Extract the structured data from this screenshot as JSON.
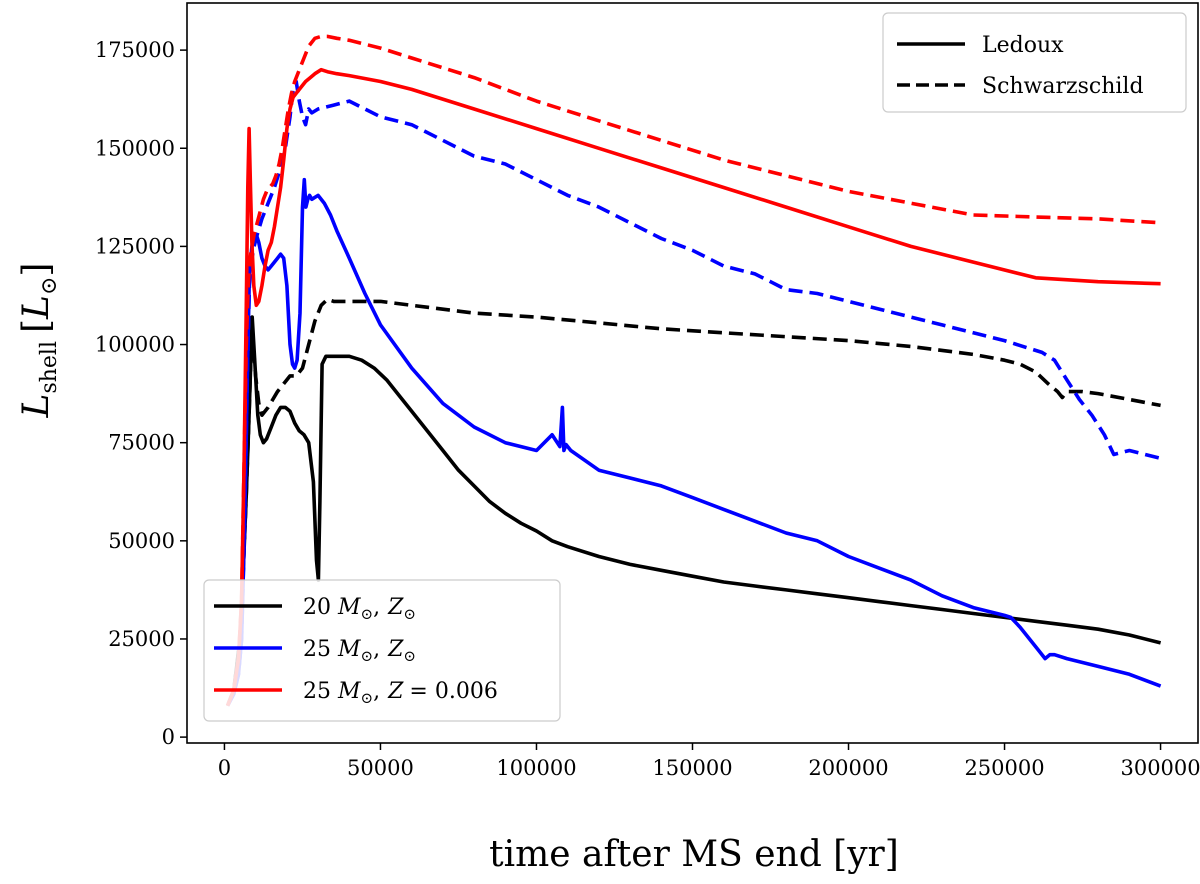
{
  "chart_data": {
    "type": "line",
    "title": "",
    "xlabel": "time after MS end [yr]",
    "ylabel_main": "L",
    "ylabel_sub": "shell",
    "ylabel_unit_open": "[",
    "ylabel_unit_main": "L",
    "ylabel_unit_sub": "⊙",
    "ylabel_unit_close": "]",
    "xlim": [
      -12000,
      312000
    ],
    "ylim": [
      -1500,
      187000
    ],
    "xticks": [
      0,
      50000,
      100000,
      150000,
      200000,
      250000,
      300000
    ],
    "xtick_labels": [
      "0",
      "50000",
      "100000",
      "150000",
      "200000",
      "250000",
      "300000"
    ],
    "yticks": [
      0,
      25000,
      50000,
      75000,
      100000,
      125000,
      150000,
      175000
    ],
    "ytick_labels": [
      "0",
      "25000",
      "50000",
      "75000",
      "100000",
      "125000",
      "150000",
      "175000"
    ],
    "grid": false,
    "style_legend": {
      "placement": "top-right",
      "entries": [
        {
          "label": "Ledoux",
          "dash": "solid",
          "color": "#000000"
        },
        {
          "label": "Schwarzschild",
          "dash": "dashed",
          "color": "#000000"
        }
      ]
    },
    "model_legend": {
      "placement": "bottom-left",
      "entries": [
        {
          "mass": "20",
          "sym": "M",
          "sub": "⊙",
          "sep": ",",
          "zsym": "Z",
          "zsub": "⊙",
          "zval": "",
          "color": "#000000"
        },
        {
          "mass": "25",
          "sym": "M",
          "sub": "⊙",
          "sep": ",",
          "zsym": "Z",
          "zsub": "⊙",
          "zval": "",
          "color": "#0000ff"
        },
        {
          "mass": "25",
          "sym": "M",
          "sub": "⊙",
          "sep": ",",
          "zsym": "Z",
          "zsub": "",
          "zval": "= 0.006",
          "color": "#ff0000"
        }
      ]
    },
    "series": [
      {
        "name": "20 M⊙, Z⊙ Ledoux",
        "color": "#000000",
        "dash": "solid",
        "x": [
          1000,
          3000,
          5000,
          6000,
          7000,
          7800,
          8400,
          8900,
          9400,
          10000,
          10700,
          11500,
          12500,
          13500,
          15000,
          16500,
          18000,
          19500,
          21000,
          22500,
          24000,
          25500,
          27000,
          28500,
          29500,
          30100,
          30600,
          31300,
          32500,
          34000,
          36000,
          40000,
          44000,
          48000,
          52000,
          56000,
          60000,
          65000,
          70000,
          75000,
          80000,
          85000,
          90000,
          95000,
          100000,
          105000,
          110000,
          120000,
          130000,
          140000,
          150000,
          160000,
          170000,
          180000,
          190000,
          200000,
          210000,
          220000,
          230000,
          240000,
          250000,
          260000,
          270000,
          280000,
          290000,
          300000
        ],
        "y": [
          8000,
          12000,
          25000,
          42000,
          62000,
          80000,
          95000,
          107000,
          100000,
          92000,
          82000,
          77000,
          75000,
          76000,
          79000,
          82000,
          84000,
          84000,
          83000,
          80000,
          78000,
          77000,
          75000,
          65000,
          45000,
          40000,
          60000,
          95000,
          97000,
          97000,
          97000,
          97000,
          96000,
          94000,
          91000,
          87000,
          83000,
          78000,
          73000,
          68000,
          64000,
          60000,
          57000,
          54500,
          52500,
          50000,
          48500,
          46000,
          44000,
          42500,
          41000,
          39500,
          38500,
          37500,
          36500,
          35500,
          34500,
          33500,
          32500,
          31500,
          30500,
          29500,
          28500,
          27500,
          26000,
          24000
        ]
      },
      {
        "name": "20 M⊙, Z⊙ Schwarzschild",
        "color": "#000000",
        "dash": "dashed",
        "x": [
          1000,
          3000,
          5000,
          6000,
          7000,
          7800,
          8400,
          8900,
          9400,
          10000,
          11000,
          12000,
          13000,
          14000,
          15500,
          17000,
          19000,
          21000,
          23000,
          25000,
          27000,
          29000,
          31000,
          33000,
          35000,
          40000,
          50000,
          60000,
          80000,
          100000,
          120000,
          140000,
          160000,
          180000,
          200000,
          220000,
          240000,
          250000,
          255000,
          260000,
          264000,
          267000,
          268500,
          270000,
          275000,
          280000,
          290000,
          300000
        ],
        "y": [
          8000,
          12000,
          25000,
          42000,
          62000,
          80000,
          95000,
          104000,
          98000,
          92000,
          85000,
          82000,
          83000,
          84000,
          86000,
          88000,
          90000,
          92000,
          92000,
          94000,
          100000,
          106000,
          110000,
          111500,
          111000,
          111000,
          111000,
          110000,
          108000,
          107000,
          105500,
          104000,
          103000,
          102000,
          101000,
          99500,
          97500,
          96000,
          95000,
          93000,
          90000,
          88000,
          86500,
          88000,
          88000,
          87500,
          86000,
          84500
        ]
      },
      {
        "name": "25 M⊙, Z⊙ Ledoux",
        "color": "#0000ff",
        "dash": "solid",
        "x": [
          1000,
          3000,
          4500,
          5500,
          6500,
          7300,
          8000,
          8800,
          9500,
          10200,
          11000,
          12000,
          13000,
          14000,
          15000,
          16000,
          17000,
          18000,
          19000,
          20000,
          21000,
          21800,
          22500,
          23300,
          24200,
          25000,
          25600,
          26100,
          26700,
          27300,
          28000,
          30000,
          32000,
          34000,
          36000,
          40000,
          45000,
          50000,
          60000,
          70000,
          80000,
          90000,
          100000,
          105000,
          107500,
          108300,
          108800,
          109500,
          111000,
          120000,
          130000,
          140000,
          150000,
          160000,
          170000,
          180000,
          190000,
          200000,
          210000,
          220000,
          230000,
          240000,
          250000,
          252000,
          255000,
          258000,
          261000,
          263000,
          264500,
          266000,
          270000,
          280000,
          290000,
          300000
        ],
        "y": [
          8000,
          11000,
          16000,
          25000,
          55000,
          90000,
          118000,
          125000,
          127000,
          128000,
          126000,
          122000,
          120000,
          119000,
          120000,
          121000,
          122000,
          123000,
          122000,
          115000,
          100000,
          95000,
          94000,
          96000,
          108000,
          135000,
          142000,
          135000,
          137000,
          138000,
          137000,
          138000,
          136000,
          133000,
          129000,
          122000,
          113000,
          105000,
          94000,
          85000,
          79000,
          75000,
          73000,
          77000,
          74000,
          84000,
          73000,
          74500,
          73000,
          68000,
          66000,
          64000,
          61000,
          58000,
          55000,
          52000,
          50000,
          46000,
          43000,
          40000,
          36000,
          33000,
          31000,
          30500,
          28000,
          25000,
          22000,
          20000,
          21000,
          21000,
          20000,
          18000,
          16000,
          13000
        ]
      },
      {
        "name": "25 M⊙, Z⊙ Schwarzschild",
        "color": "#0000ff",
        "dash": "dashed",
        "x": [
          1000,
          3000,
          4500,
          5500,
          6500,
          7300,
          8000,
          8800,
          9500,
          10500,
          12000,
          14000,
          16000,
          18000,
          19500,
          21000,
          22000,
          23000,
          24000,
          25000,
          26000,
          27000,
          28000,
          30000,
          35000,
          40000,
          45000,
          50000,
          60000,
          70000,
          80000,
          90000,
          100000,
          110000,
          120000,
          130000,
          140000,
          150000,
          160000,
          170000,
          175000,
          180000,
          190000,
          200000,
          210000,
          220000,
          230000,
          240000,
          250000,
          258000,
          262000,
          266000,
          270000,
          274000,
          278000,
          282000,
          285000,
          290000,
          300000
        ],
        "y": [
          8000,
          11000,
          16000,
          25000,
          55000,
          90000,
          115000,
          122000,
          125000,
          128000,
          132000,
          136000,
          140000,
          145000,
          150000,
          158000,
          165000,
          167000,
          162000,
          158000,
          156000,
          160000,
          159000,
          160000,
          161000,
          162000,
          160000,
          158000,
          156000,
          152000,
          148000,
          146000,
          142000,
          138000,
          135000,
          131000,
          127000,
          124000,
          120000,
          118000,
          116000,
          114000,
          113000,
          111000,
          109000,
          107000,
          105000,
          103000,
          101000,
          99000,
          98000,
          96000,
          91000,
          86000,
          82000,
          77000,
          72000,
          73000,
          71000
        ]
      },
      {
        "name": "25 M⊙, Z=0.006 Ledoux",
        "color": "#ff0000",
        "dash": "solid",
        "x": [
          1000,
          3000,
          4500,
          5500,
          6300,
          7000,
          7500,
          7900,
          8300,
          8800,
          9400,
          10200,
          11000,
          12000,
          13000,
          14000,
          15000,
          16000,
          17000,
          18000,
          19000,
          20000,
          21000,
          22000,
          23000,
          24000,
          25000,
          26000,
          27500,
          29000,
          31000,
          33000,
          36000,
          40000,
          50000,
          60000,
          80000,
          100000,
          120000,
          140000,
          160000,
          180000,
          200000,
          220000,
          240000,
          260000,
          280000,
          300000
        ],
        "y": [
          8000,
          12000,
          20000,
          35000,
          70000,
          110000,
          140000,
          155000,
          142000,
          126000,
          115000,
          110000,
          111000,
          115000,
          120000,
          124000,
          126000,
          130000,
          135000,
          140000,
          147000,
          155000,
          160000,
          163000,
          164000,
          165000,
          166000,
          167000,
          168000,
          169000,
          170000,
          169500,
          169000,
          168500,
          167000,
          165000,
          160000,
          155000,
          150000,
          145000,
          140000,
          135000,
          130000,
          125000,
          121000,
          117000,
          116000,
          115500
        ]
      },
      {
        "name": "25 M⊙, Z=0.006 Schwarzschild",
        "color": "#ff0000",
        "dash": "dashed",
        "x": [
          1000,
          3000,
          4500,
          5500,
          6300,
          7000,
          7600,
          8200,
          8800,
          9500,
          10500,
          11500,
          12500,
          13500,
          14500,
          15500,
          16500,
          17500,
          18500,
          19500,
          20500,
          21500,
          22500,
          23500,
          24500,
          25500,
          27000,
          29000,
          31000,
          33000,
          36000,
          40000,
          50000,
          60000,
          80000,
          100000,
          120000,
          140000,
          160000,
          180000,
          200000,
          220000,
          240000,
          260000,
          280000,
          300000
        ],
        "y": [
          8000,
          12000,
          20000,
          35000,
          70000,
          100000,
          115000,
          122000,
          125000,
          128000,
          131000,
          134000,
          137000,
          139000,
          140000,
          141000,
          143000,
          146000,
          150000,
          155000,
          160000,
          164000,
          167000,
          169000,
          171000,
          173000,
          176000,
          178000,
          178500,
          178500,
          178000,
          177500,
          175500,
          173000,
          168000,
          162000,
          157000,
          152000,
          147000,
          143000,
          139000,
          136000,
          133000,
          132500,
          132000,
          131000
        ]
      }
    ]
  }
}
